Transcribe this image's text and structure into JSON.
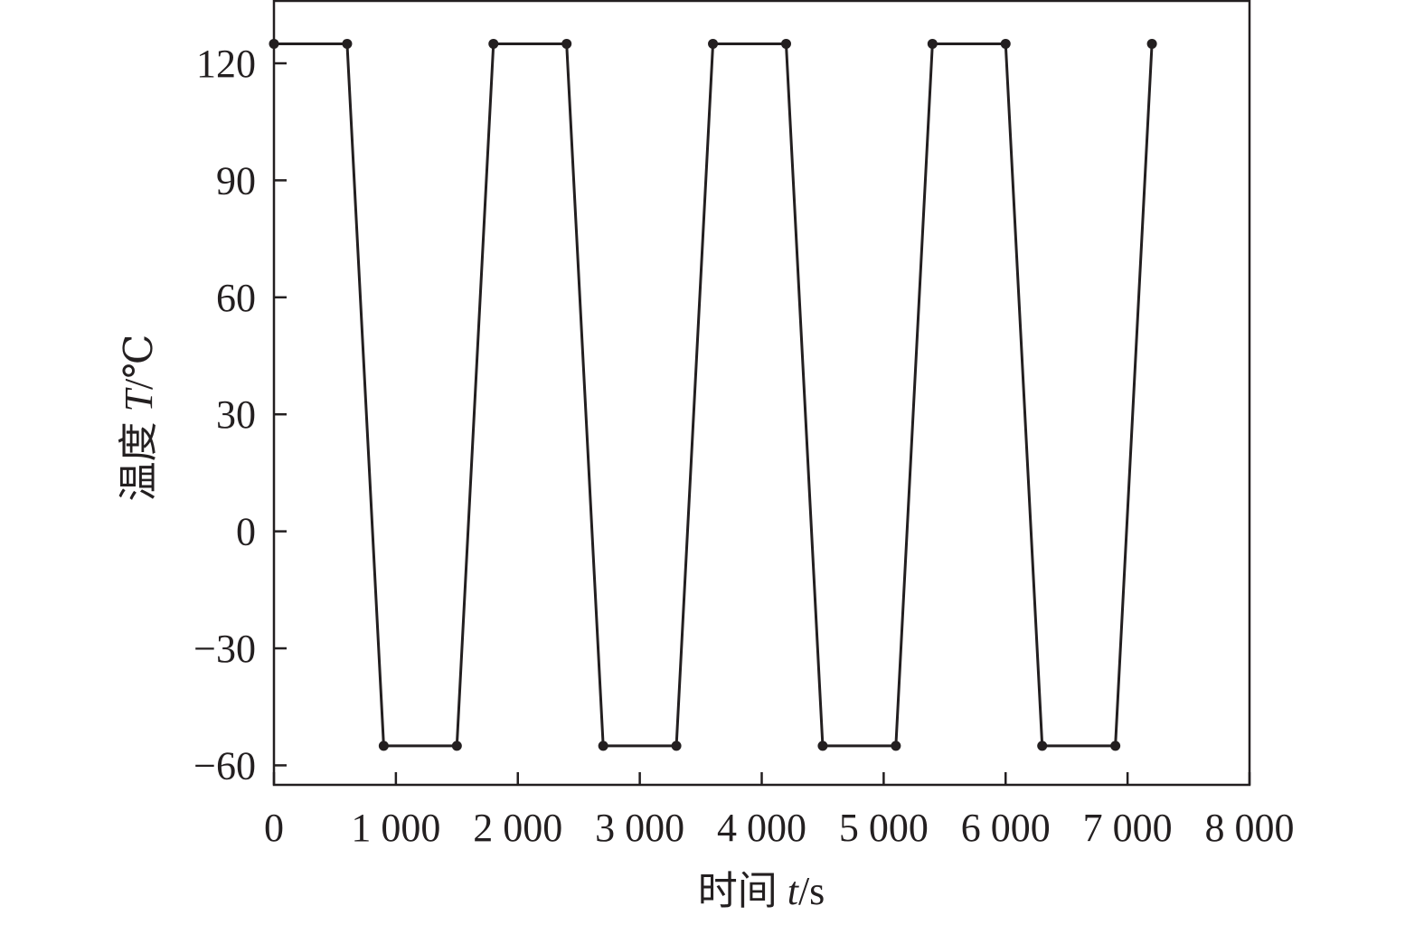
{
  "chart_data": {
    "type": "line",
    "title": "",
    "xlabel": {
      "text": "时间",
      "symbol": "t",
      "unit": "/s"
    },
    "ylabel": {
      "text": "温度",
      "symbol": "T",
      "unit": "/℃"
    },
    "xlim": [
      0,
      8000
    ],
    "ylim": [
      -65,
      136
    ],
    "x_ticks": [
      0,
      1000,
      2000,
      3000,
      4000,
      5000,
      6000,
      7000,
      8000
    ],
    "x_tick_labels": [
      "0",
      "1 000",
      "2 000",
      "3 000",
      "4 000",
      "5 000",
      "6 000",
      "7 000",
      "8 000"
    ],
    "y_ticks": [
      -60,
      -30,
      0,
      30,
      60,
      90,
      120
    ],
    "y_tick_labels": [
      "−60",
      "−30",
      "0",
      "30",
      "60",
      "90",
      "120"
    ],
    "grid": false,
    "markers": true,
    "series": [
      {
        "color": "#231f20",
        "x": [
          0,
          600,
          900,
          1500,
          1800,
          2400,
          2700,
          3300,
          3600,
          4200,
          4500,
          5100,
          5400,
          6000,
          6300,
          6900,
          7200
        ],
        "y": [
          125,
          125,
          -55,
          -55,
          125,
          125,
          -55,
          -55,
          125,
          125,
          -55,
          -55,
          125,
          125,
          -55,
          -55,
          125
        ]
      }
    ]
  }
}
